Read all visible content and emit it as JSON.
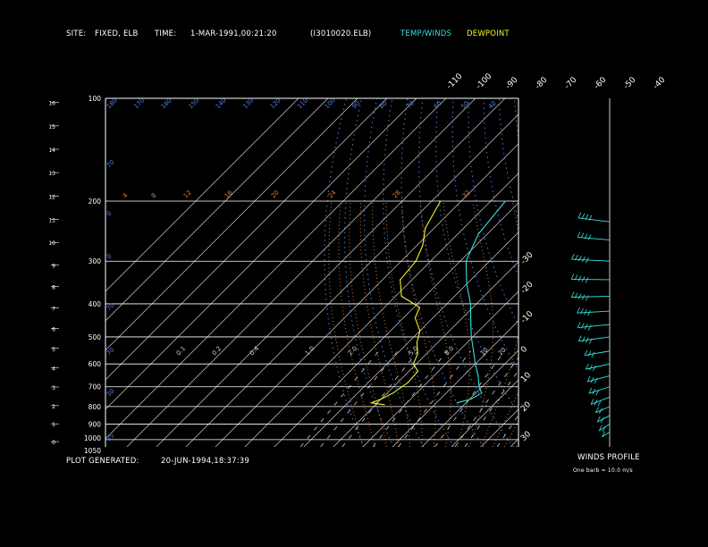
{
  "header": {
    "site_label": "SITE:",
    "site_value": "FIXED, ELB",
    "time_label": "TIME:",
    "time_value": "1-MAR-1991,00:21:20",
    "file": "(I3010020.ELB)",
    "temp_legend": "TEMP/WINDS",
    "dew_legend": "DEWPOINT"
  },
  "footer": {
    "generated_label": "PLOT GENERATED:",
    "generated_value": "20-JUN-1994,18:37:39"
  },
  "winds_profile": {
    "title": "WINDS PROFILE",
    "note": "One barb = 10.0 m/s"
  },
  "colors": {
    "temp": "#35e0e0",
    "dew": "#f4f428",
    "isotherm": "#cfcfcf",
    "dry_adiabat": "#4f7fe6",
    "moist_adiabat": "#e07b3a",
    "mixing_ratio": "#cfcfcf",
    "isobar": "#ffffff"
  },
  "chart_data": {
    "type": "line",
    "subtype": "skew-T log-P diagram",
    "pressure_ticks_mb": [
      100,
      200,
      300,
      400,
      500,
      600,
      700,
      800,
      900,
      1000,
      1050
    ],
    "height_ticks_km": [
      0,
      1,
      2,
      3,
      4,
      5,
      6,
      7,
      8,
      9,
      10,
      11,
      12,
      13,
      14,
      15,
      16
    ],
    "top_temp_labels": [
      "-110",
      "-100",
      "-90",
      "-80",
      "-70",
      "-60",
      "-50",
      "-40"
    ],
    "right_temp_labels": [
      "-30",
      "-20",
      "-10",
      "0",
      "10",
      "20",
      "30"
    ],
    "dry_adiabat_labels": [
      "180",
      "170",
      "160",
      "150",
      "140",
      "130",
      "120",
      "110",
      "100",
      "90",
      "80",
      "70",
      "60",
      "50",
      "40"
    ],
    "moist_adiabat_labels": [
      "4",
      "8",
      "12",
      "16",
      "20",
      "24",
      "28",
      "32"
    ],
    "mixing_ratio_labels": [
      "0.1",
      "0.2",
      "0.4",
      "1.0",
      "2.0",
      "5.0",
      "8.0",
      "10",
      "20"
    ],
    "pressure_range_mb": [
      1050,
      100
    ],
    "temperature_range_c": [
      -110,
      40
    ],
    "series": [
      {
        "name": "TEMP/WINDS",
        "points": [
          {
            "p": 200,
            "t": -55.0
          },
          {
            "p": 250,
            "t": -53.0
          },
          {
            "p": 300,
            "t": -48.0
          },
          {
            "p": 350,
            "t": -40.0
          },
          {
            "p": 400,
            "t": -32.0
          },
          {
            "p": 450,
            "t": -26.0
          },
          {
            "p": 500,
            "t": -20.5
          },
          {
            "p": 550,
            "t": -15.0
          },
          {
            "p": 600,
            "t": -10.0
          },
          {
            "p": 650,
            "t": -5.0
          },
          {
            "p": 700,
            "t": -1.0
          },
          {
            "p": 730,
            "t": 2.0
          },
          {
            "p": 760,
            "t": 0.5
          },
          {
            "p": 780,
            "t": -3.0
          }
        ]
      },
      {
        "name": "DEWPOINT",
        "points": [
          {
            "p": 200,
            "t": -77.0
          },
          {
            "p": 240,
            "t": -73.0
          },
          {
            "p": 270,
            "t": -68.0
          },
          {
            "p": 300,
            "t": -65.0
          },
          {
            "p": 340,
            "t": -64.0
          },
          {
            "p": 380,
            "t": -58.0
          },
          {
            "p": 410,
            "t": -48.0
          },
          {
            "p": 440,
            "t": -46.0
          },
          {
            "p": 480,
            "t": -40.0
          },
          {
            "p": 520,
            "t": -37.0
          },
          {
            "p": 560,
            "t": -33.0
          },
          {
            "p": 600,
            "t": -31.0
          },
          {
            "p": 630,
            "t": -27.0
          },
          {
            "p": 680,
            "t": -26.5
          },
          {
            "p": 730,
            "t": -28.0
          },
          {
            "p": 760,
            "t": -30.0
          },
          {
            "p": 780,
            "t": -32.0
          },
          {
            "p": 790,
            "t": -27.0
          }
        ]
      }
    ],
    "winds_profile": [
      {
        "p": 230,
        "speed_barbs": 4
      },
      {
        "p": 260,
        "speed_barbs": 4
      },
      {
        "p": 300,
        "speed_barbs": 5
      },
      {
        "p": 340,
        "speed_barbs": 5
      },
      {
        "p": 380,
        "speed_barbs": 5
      },
      {
        "p": 420,
        "speed_barbs": 4
      },
      {
        "p": 460,
        "speed_barbs": 4
      },
      {
        "p": 500,
        "speed_barbs": 4
      },
      {
        "p": 550,
        "speed_barbs": 3
      },
      {
        "p": 600,
        "speed_barbs": 3
      },
      {
        "p": 650,
        "speed_barbs": 3
      },
      {
        "p": 700,
        "speed_barbs": 3
      },
      {
        "p": 750,
        "speed_barbs": 3
      },
      {
        "p": 800,
        "speed_barbs": 2
      },
      {
        "p": 850,
        "speed_barbs": 2
      },
      {
        "p": 900,
        "speed_barbs": 2
      },
      {
        "p": 950,
        "speed_barbs": 1
      }
    ],
    "grid": true,
    "legend": "top"
  }
}
